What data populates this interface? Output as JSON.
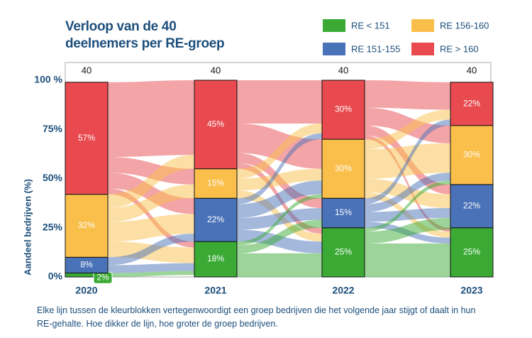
{
  "chart_data": {
    "type": "alluvial",
    "title": "Verloop van de 40 deelnemers per RE-groep",
    "y_label": "Aandeel bedrijven (%)",
    "caption": "Elke lijn tussen de kleurblokken vertegenwoordigt een groep bedrijven die het volgende jaar stijgt of daalt in hun RE-gehalte. Hoe dikker de lijn, hoe groter de groep bedrijven.",
    "categories": [
      "2020",
      "2021",
      "2022",
      "2023"
    ],
    "totals": [
      40,
      40,
      40,
      40
    ],
    "ylim": [
      0,
      100
    ],
    "yticks": [
      {
        "value": 0,
        "label": "0%"
      },
      {
        "value": 25,
        "label": "25%"
      },
      {
        "value": 50,
        "label": "50%"
      },
      {
        "value": 75,
        "label": "75%"
      },
      {
        "value": 100,
        "label": "100 %"
      }
    ],
    "series": [
      {
        "name": "RE < 151",
        "color": "#3aaa35",
        "values": [
          2,
          18,
          25,
          25
        ],
        "value_labels": [
          "2%",
          "18%",
          "25%",
          "25%"
        ]
      },
      {
        "name": "RE 151-155",
        "color": "#4a72b8",
        "values": [
          8,
          22,
          15,
          22
        ],
        "value_labels": [
          "8%",
          "22%",
          "15%",
          "22%"
        ]
      },
      {
        "name": "RE 156-160",
        "color": "#f9bf4a",
        "values": [
          32,
          15,
          30,
          30
        ],
        "value_labels": [
          "32%",
          "15%",
          "30%",
          "30%"
        ]
      },
      {
        "name": "RE > 160",
        "color": "#e84a4f",
        "values": [
          57,
          45,
          30,
          22
        ],
        "value_labels": [
          "57%",
          "45%",
          "30%",
          "22%"
        ]
      }
    ],
    "flows": [
      {
        "period": 0,
        "from": 3,
        "to": 3,
        "value": 38
      },
      {
        "period": 0,
        "from": 3,
        "to": 2,
        "value": 8
      },
      {
        "period": 0,
        "from": 3,
        "to": 1,
        "value": 8
      },
      {
        "period": 0,
        "from": 3,
        "to": 0,
        "value": 3
      },
      {
        "period": 0,
        "from": 2,
        "to": 3,
        "value": 7
      },
      {
        "period": 0,
        "from": 2,
        "to": 2,
        "value": 7
      },
      {
        "period": 0,
        "from": 2,
        "to": 1,
        "value": 10
      },
      {
        "period": 0,
        "from": 2,
        "to": 0,
        "value": 8
      },
      {
        "period": 0,
        "from": 1,
        "to": 1,
        "value": 4
      },
      {
        "period": 0,
        "from": 1,
        "to": 0,
        "value": 4
      },
      {
        "period": 0,
        "from": 0,
        "to": 0,
        "value": 2
      },
      {
        "period": 1,
        "from": 3,
        "to": 3,
        "value": 22
      },
      {
        "period": 1,
        "from": 3,
        "to": 2,
        "value": 15
      },
      {
        "period": 1,
        "from": 3,
        "to": 1,
        "value": 5
      },
      {
        "period": 1,
        "from": 3,
        "to": 0,
        "value": 3
      },
      {
        "period": 1,
        "from": 2,
        "to": 3,
        "value": 5
      },
      {
        "period": 1,
        "from": 2,
        "to": 2,
        "value": 6
      },
      {
        "period": 1,
        "from": 2,
        "to": 0,
        "value": 4
      },
      {
        "period": 1,
        "from": 1,
        "to": 3,
        "value": 3
      },
      {
        "period": 1,
        "from": 1,
        "to": 2,
        "value": 7
      },
      {
        "period": 1,
        "from": 1,
        "to": 1,
        "value": 6
      },
      {
        "period": 1,
        "from": 1,
        "to": 0,
        "value": 6
      },
      {
        "period": 1,
        "from": 0,
        "to": 2,
        "value": 2
      },
      {
        "period": 1,
        "from": 0,
        "to": 1,
        "value": 4
      },
      {
        "period": 1,
        "from": 0,
        "to": 0,
        "value": 12
      },
      {
        "period": 2,
        "from": 3,
        "to": 3,
        "value": 14
      },
      {
        "period": 2,
        "from": 3,
        "to": 2,
        "value": 9
      },
      {
        "period": 2,
        "from": 3,
        "to": 1,
        "value": 5
      },
      {
        "period": 2,
        "from": 3,
        "to": 0,
        "value": 2
      },
      {
        "period": 2,
        "from": 2,
        "to": 3,
        "value": 5
      },
      {
        "period": 2,
        "from": 2,
        "to": 2,
        "value": 15
      },
      {
        "period": 2,
        "from": 2,
        "to": 1,
        "value": 7
      },
      {
        "period": 2,
        "from": 2,
        "to": 0,
        "value": 3
      },
      {
        "period": 2,
        "from": 1,
        "to": 3,
        "value": 3
      },
      {
        "period": 2,
        "from": 1,
        "to": 2,
        "value": 4
      },
      {
        "period": 2,
        "from": 1,
        "to": 1,
        "value": 5
      },
      {
        "period": 2,
        "from": 1,
        "to": 0,
        "value": 3
      },
      {
        "period": 2,
        "from": 0,
        "to": 2,
        "value": 2
      },
      {
        "period": 2,
        "from": 0,
        "to": 1,
        "value": 6
      },
      {
        "period": 2,
        "from": 0,
        "to": 0,
        "value": 17
      }
    ]
  }
}
